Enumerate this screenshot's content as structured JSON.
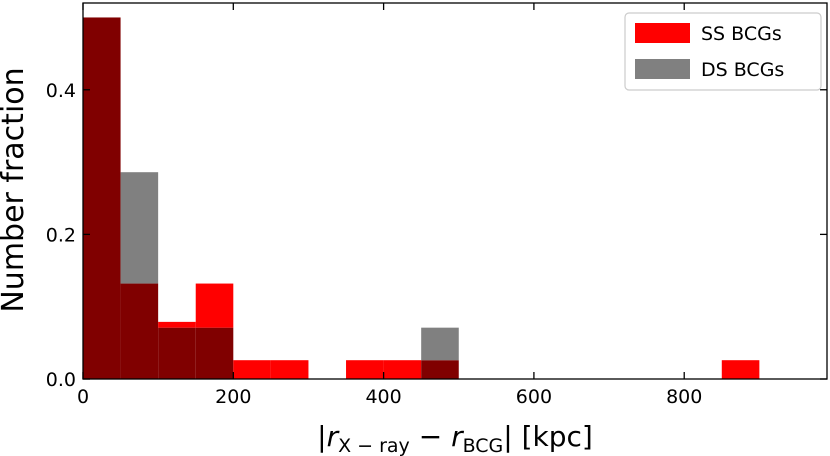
{
  "chart_data": {
    "type": "bar",
    "xlabel": {
      "prefix": "|",
      "r1": "r",
      "sub1": "X − ray",
      "minus": " − ",
      "r2": "r",
      "sub2": "BCG",
      "suffix": "| [kpc]"
    },
    "ylabel": "Number fraction",
    "xlim": [
      0,
      990
    ],
    "ylim": [
      0,
      0.52
    ],
    "x_ticks": [
      0,
      200,
      400,
      600,
      800
    ],
    "x_tick_labels": [
      "0",
      "200",
      "400",
      "600",
      "800"
    ],
    "y_ticks": [
      0.0,
      0.2,
      0.4
    ],
    "y_tick_labels": [
      "0.0",
      "0.2",
      "0.4"
    ],
    "bin_width": 50,
    "legend_position": "top-right",
    "colors": {
      "ss": "#ff0000",
      "ds": "#808080",
      "overlap": "#800000"
    },
    "series": [
      {
        "name": "SS BCGs",
        "bin_starts": [
          0,
          50,
          100,
          150,
          200,
          250,
          350,
          400,
          450,
          850
        ],
        "values": [
          0.5,
          0.132,
          0.079,
          0.132,
          0.026,
          0.026,
          0.026,
          0.026,
          0.026,
          0.026
        ]
      },
      {
        "name": "DS BCGs",
        "bin_starts": [
          0,
          50,
          100,
          150,
          450
        ],
        "values": [
          0.5,
          0.286,
          0.071,
          0.071,
          0.071
        ]
      }
    ]
  }
}
